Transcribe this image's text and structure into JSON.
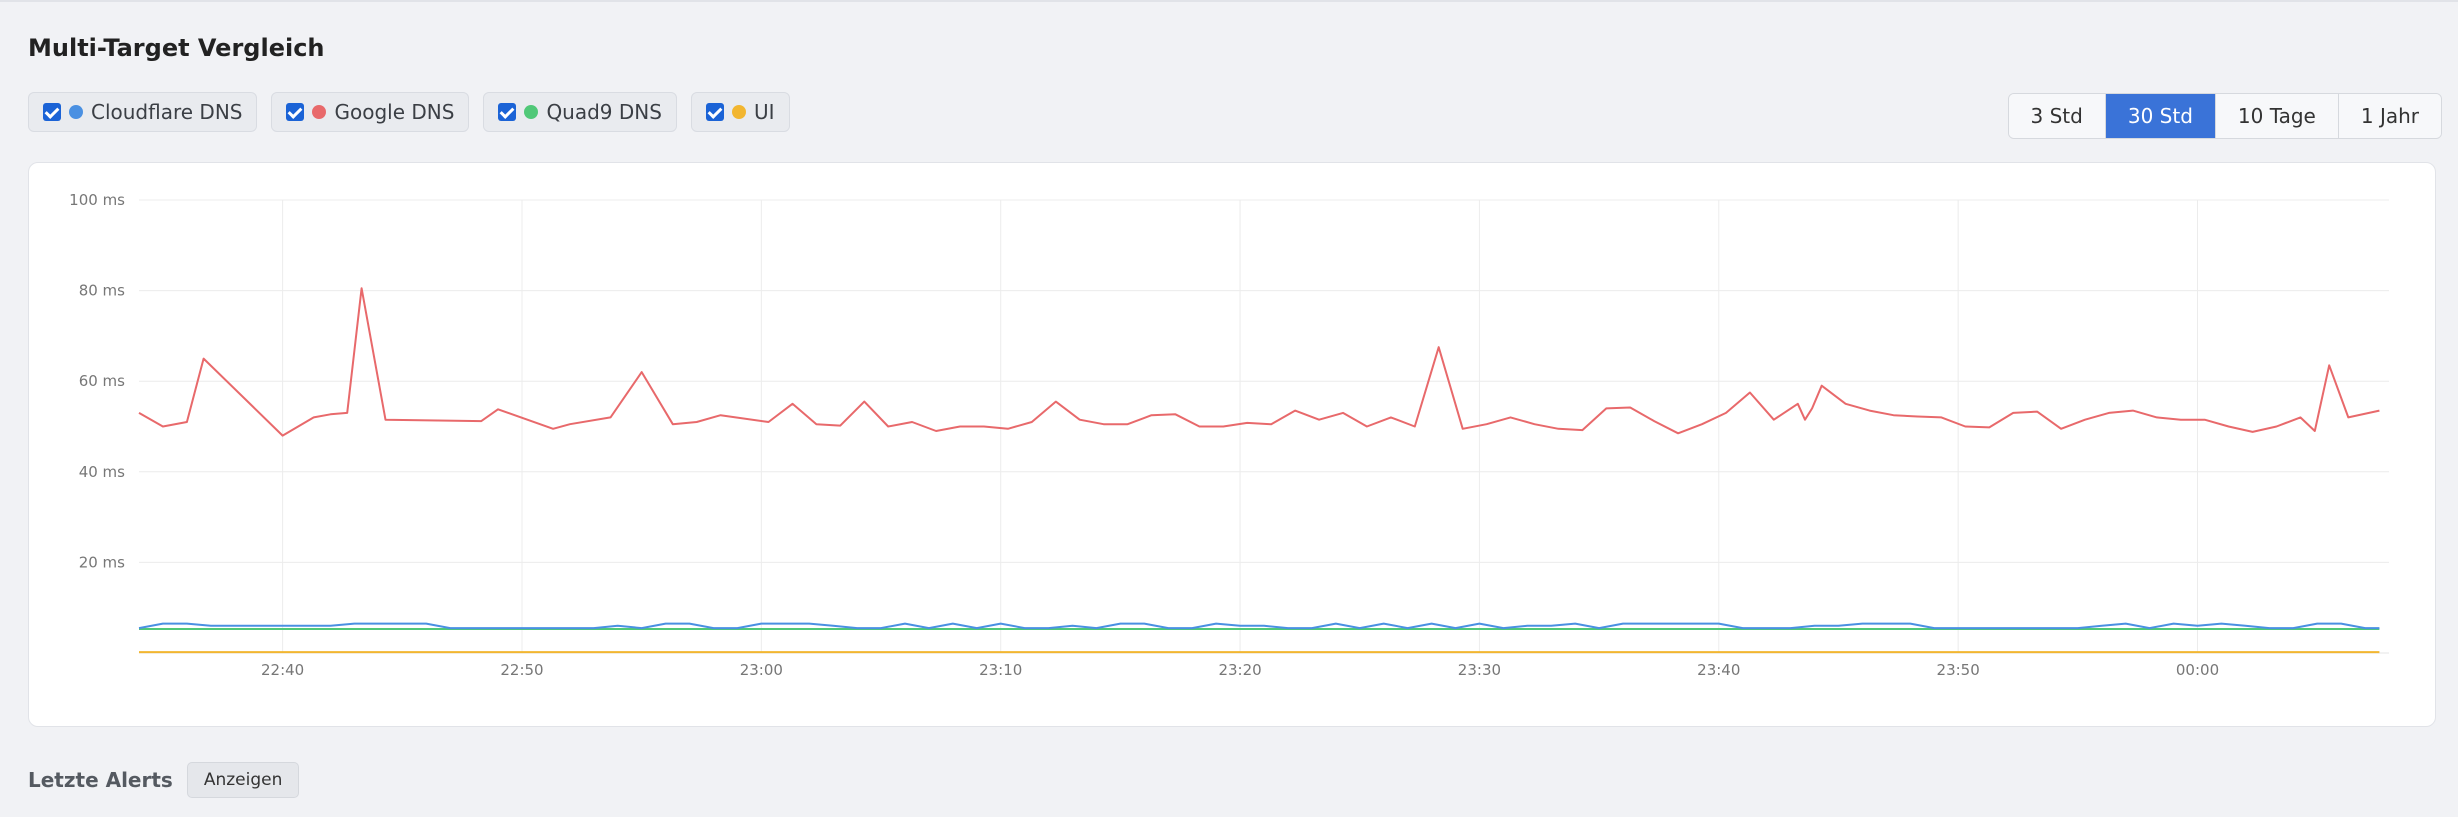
{
  "section": {
    "title": "Multi-Target Vergleich"
  },
  "targets": [
    {
      "label": "Cloudflare DNS",
      "color": "#4a90e2",
      "checked": true
    },
    {
      "label": "Google DNS",
      "color": "#e8696b",
      "checked": true
    },
    {
      "label": "Quad9 DNS",
      "color": "#50c878",
      "checked": true
    },
    {
      "label": "UI",
      "color": "#f2b630",
      "checked": true
    }
  ],
  "ranges": {
    "items": [
      "3 Std",
      "30 Std",
      "10 Tage",
      "1 Jahr"
    ],
    "active": "30 Std"
  },
  "chart_data": {
    "type": "line",
    "title": "",
    "xlabel": "",
    "ylabel": "",
    "ylim": [
      0,
      100
    ],
    "yticks": [
      "20 ms",
      "40 ms",
      "60 ms",
      "80 ms",
      "100 ms"
    ],
    "ytick_values": [
      20,
      40,
      60,
      80,
      100
    ],
    "x_range": [
      "22:34",
      "23:10"
    ],
    "xticks": [
      "22:40",
      "22:50",
      "23:00",
      "23:10",
      "23:20",
      "23:30",
      "23:40",
      "23:50",
      "00:00"
    ],
    "xtick_minutes": [
      6,
      16,
      26,
      36,
      46,
      56,
      66,
      76,
      86
    ],
    "x_minutes_total": 94,
    "grid": true,
    "series": [
      {
        "name": "Google DNS",
        "color": "#e8696b",
        "x": [
          0,
          1,
          2,
          2.7,
          6,
          7.3,
          8,
          8.7,
          9.3,
          10.3,
          14.3,
          15,
          17.3,
          18,
          19.7,
          21,
          22.3,
          23.3,
          24.3,
          26.3,
          27.3,
          28.3,
          29.3,
          30.3,
          31.3,
          32.3,
          33.3,
          34.3,
          35.3,
          36.3,
          37.3,
          38.3,
          39.3,
          40.3,
          41.3,
          42.3,
          43.3,
          44.3,
          45.3,
          46.3,
          47.3,
          48.3,
          49.3,
          50.3,
          51.3,
          52.3,
          53.3,
          54.3,
          55.3,
          56.3,
          57.3,
          58.3,
          59.3,
          60.3,
          61.3,
          62.3,
          63.3,
          64.3,
          65.3,
          66.3,
          67.3,
          68.3,
          69.3,
          69.6,
          69.9,
          70.3,
          71.3,
          72.3,
          73.3,
          74.3,
          75.3,
          76.3,
          77.3,
          78.3,
          79.3,
          80.3,
          81.3,
          82.3,
          83.3,
          84.3,
          85.3,
          86.3,
          87.3,
          88.3,
          89.3,
          90.3,
          90.9,
          91.5,
          92.3,
          93.6
        ],
        "values": [
          53,
          50,
          51,
          65,
          48,
          52,
          52.7,
          53,
          80.5,
          51.5,
          51.2,
          53.8,
          49.5,
          50.5,
          52,
          62,
          50.5,
          51,
          52.5,
          51,
          55,
          50.5,
          50.2,
          55.5,
          50,
          51,
          49,
          50,
          50,
          49.5,
          51,
          55.5,
          51.5,
          50.5,
          50.5,
          52.5,
          52.7,
          50,
          50,
          50.8,
          50.5,
          53.5,
          51.5,
          53,
          50,
          52,
          50,
          67.5,
          49.5,
          50.5,
          52,
          50.5,
          49.5,
          49.2,
          54,
          54.2,
          51.2,
          48.5,
          50.5,
          53,
          57.5,
          51.5,
          55,
          51.5,
          54,
          59,
          55,
          53.5,
          52.5,
          52.2,
          52,
          50,
          49.8,
          53,
          53.3,
          49.5,
          51.5,
          53,
          53.5,
          52,
          51.5,
          51.5,
          50,
          48.8,
          50,
          52,
          49,
          63.5,
          52,
          53.5
        ]
      },
      {
        "name": "Cloudflare DNS",
        "color": "#4a90e2",
        "x": [
          0,
          1,
          2,
          3,
          4,
          5,
          6,
          7,
          8,
          9,
          10,
          11,
          12,
          13,
          14,
          15,
          16,
          17,
          18,
          19,
          20,
          21,
          22,
          23,
          24,
          25,
          26,
          27,
          28,
          29,
          30,
          31,
          32,
          33,
          34,
          35,
          36,
          37,
          38,
          39,
          40,
          41,
          42,
          43,
          44,
          45,
          46,
          47,
          48,
          49,
          50,
          51,
          52,
          53,
          54,
          55,
          56,
          57,
          58,
          59,
          60,
          61,
          62,
          63,
          64,
          65,
          66,
          67,
          68,
          69,
          70,
          71,
          72,
          73,
          74,
          75,
          76,
          77,
          78,
          79,
          80,
          81,
          82,
          83,
          84,
          85,
          86,
          87,
          88,
          89,
          90,
          91,
          92,
          93,
          93.6
        ],
        "values": [
          5.5,
          6.5,
          6.5,
          6,
          6,
          6,
          6,
          6,
          6,
          6.5,
          6.5,
          6.5,
          6.5,
          5.5,
          5.5,
          5.5,
          5.5,
          5.5,
          5.5,
          5.5,
          6,
          5.5,
          6.5,
          6.5,
          5.5,
          5.5,
          6.5,
          6.5,
          6.5,
          6,
          5.5,
          5.5,
          6.5,
          5.5,
          6.5,
          5.5,
          6.5,
          5.5,
          5.5,
          6,
          5.5,
          6.5,
          6.5,
          5.5,
          5.5,
          6.5,
          6,
          6,
          5.5,
          5.5,
          6.5,
          5.5,
          6.5,
          5.5,
          6.5,
          5.5,
          6.5,
          5.5,
          6,
          6,
          6.5,
          5.5,
          6.5,
          6.5,
          6.5,
          6.5,
          6.5,
          5.5,
          5.5,
          5.5,
          6,
          6,
          6.5,
          6.5,
          6.5,
          5.5,
          5.5,
          5.5,
          5.5,
          5.5,
          5.5,
          5.5,
          6,
          6.5,
          5.5,
          6.5,
          6,
          6.5,
          6,
          5.5,
          5.5,
          6.5,
          6.5,
          5.5,
          5.5
        ]
      },
      {
        "name": "Quad9 DNS",
        "color": "#50c878",
        "x": [
          0,
          93.6
        ],
        "values": [
          5.3,
          5.3
        ]
      },
      {
        "name": "UI",
        "color": "#f2b630",
        "x": [
          0,
          93.6
        ],
        "values": [
          0.2,
          0.2
        ]
      }
    ]
  },
  "alerts": {
    "title": "Letzte Alerts",
    "button_label": "Anzeigen"
  }
}
